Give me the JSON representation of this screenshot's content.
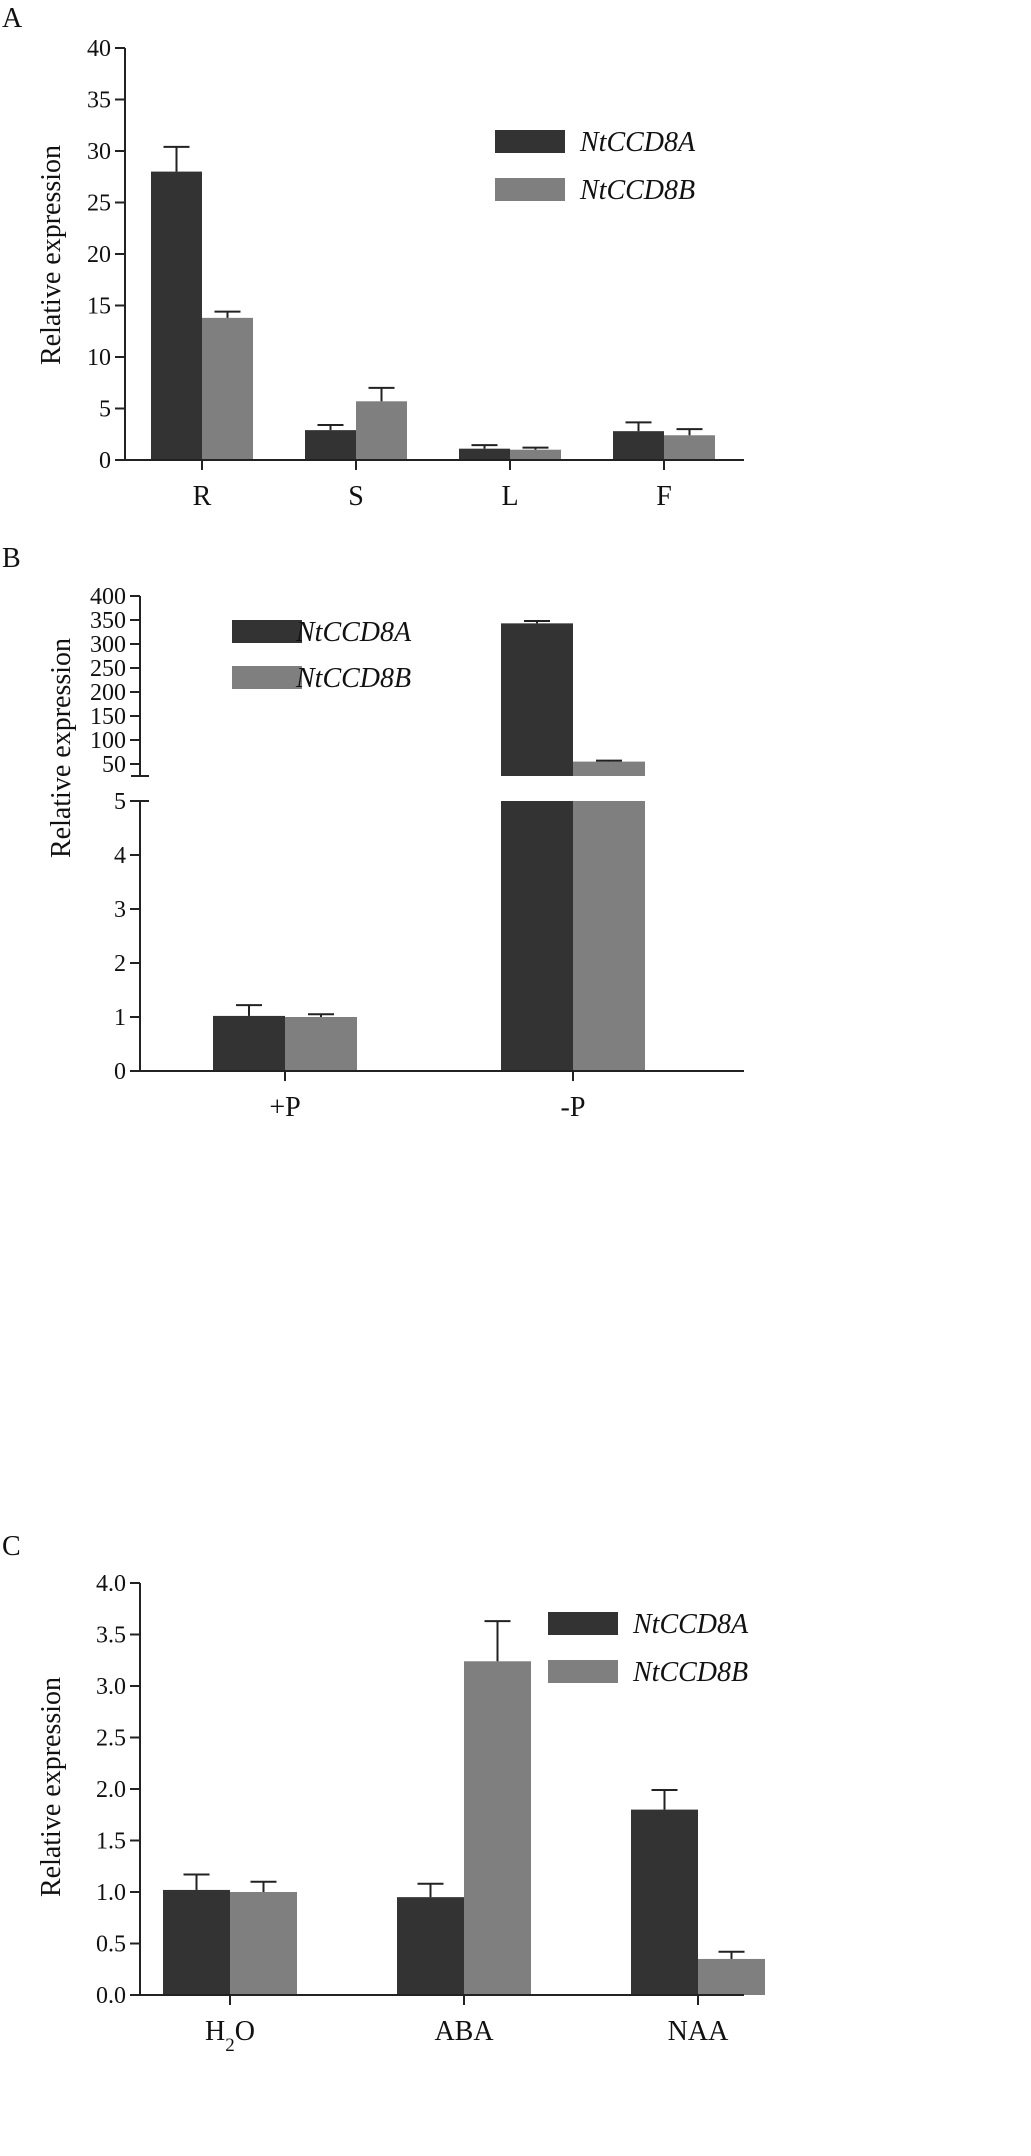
{
  "chart_data": [
    {
      "type": "bar",
      "panel_label": "A",
      "ylabel": "Relative expression",
      "ylim": [
        0,
        40
      ],
      "yticks": [
        "0",
        "5",
        "10",
        "15",
        "20",
        "25",
        "30",
        "35",
        "40"
      ],
      "categories": [
        "R",
        "S",
        "L",
        "F"
      ],
      "series": [
        {
          "name": "NtCCD8A",
          "color": "#333333",
          "values": [
            28.0,
            2.9,
            1.1,
            2.8
          ],
          "errors": [
            2.4,
            0.5,
            0.35,
            0.85
          ]
        },
        {
          "name": "NtCCD8B",
          "color": "#7f7f7f",
          "values": [
            13.8,
            5.7,
            1.0,
            2.4
          ],
          "errors": [
            0.6,
            1.3,
            0.2,
            0.6
          ]
        }
      ],
      "legend_position": "top-right"
    },
    {
      "type": "bar",
      "panel_label": "B",
      "ylabel": "Relative expression",
      "axis_break": true,
      "ylim_lower": [
        0,
        5
      ],
      "ylim_upper": [
        25,
        400
      ],
      "yticks_lower": [
        "0",
        "1",
        "2",
        "3",
        "4",
        "5"
      ],
      "yticks_upper": [
        "50",
        "100",
        "150",
        "200",
        "250",
        "300",
        "350",
        "400"
      ],
      "categories": [
        "+P",
        "-P"
      ],
      "series": [
        {
          "name": "NtCCD8A",
          "color": "#333333",
          "values": [
            1.02,
            343
          ],
          "errors": [
            0.2,
            5
          ]
        },
        {
          "name": "NtCCD8B",
          "color": "#7f7f7f",
          "values": [
            1.0,
            55
          ],
          "errors": [
            0.05,
            2
          ]
        }
      ],
      "legend_position": "top-left"
    },
    {
      "type": "bar",
      "panel_label": "C",
      "ylabel": "Relative expression",
      "ylim": [
        0,
        4.0
      ],
      "yticks": [
        "0.0",
        "0.5",
        "1.0",
        "1.5",
        "2.0",
        "2.5",
        "3.0",
        "3.5",
        "4.0"
      ],
      "categories": [
        "H2O",
        "ABA",
        "NAA"
      ],
      "series": [
        {
          "name": "NtCCD8A",
          "color": "#333333",
          "values": [
            1.02,
            0.95,
            1.8
          ],
          "errors": [
            0.15,
            0.13,
            0.19
          ]
        },
        {
          "name": "NtCCD8B",
          "color": "#7f7f7f",
          "values": [
            1.0,
            3.24,
            0.35
          ],
          "errors": [
            0.1,
            0.39,
            0.07
          ]
        }
      ],
      "legend_position": "top-right"
    }
  ]
}
